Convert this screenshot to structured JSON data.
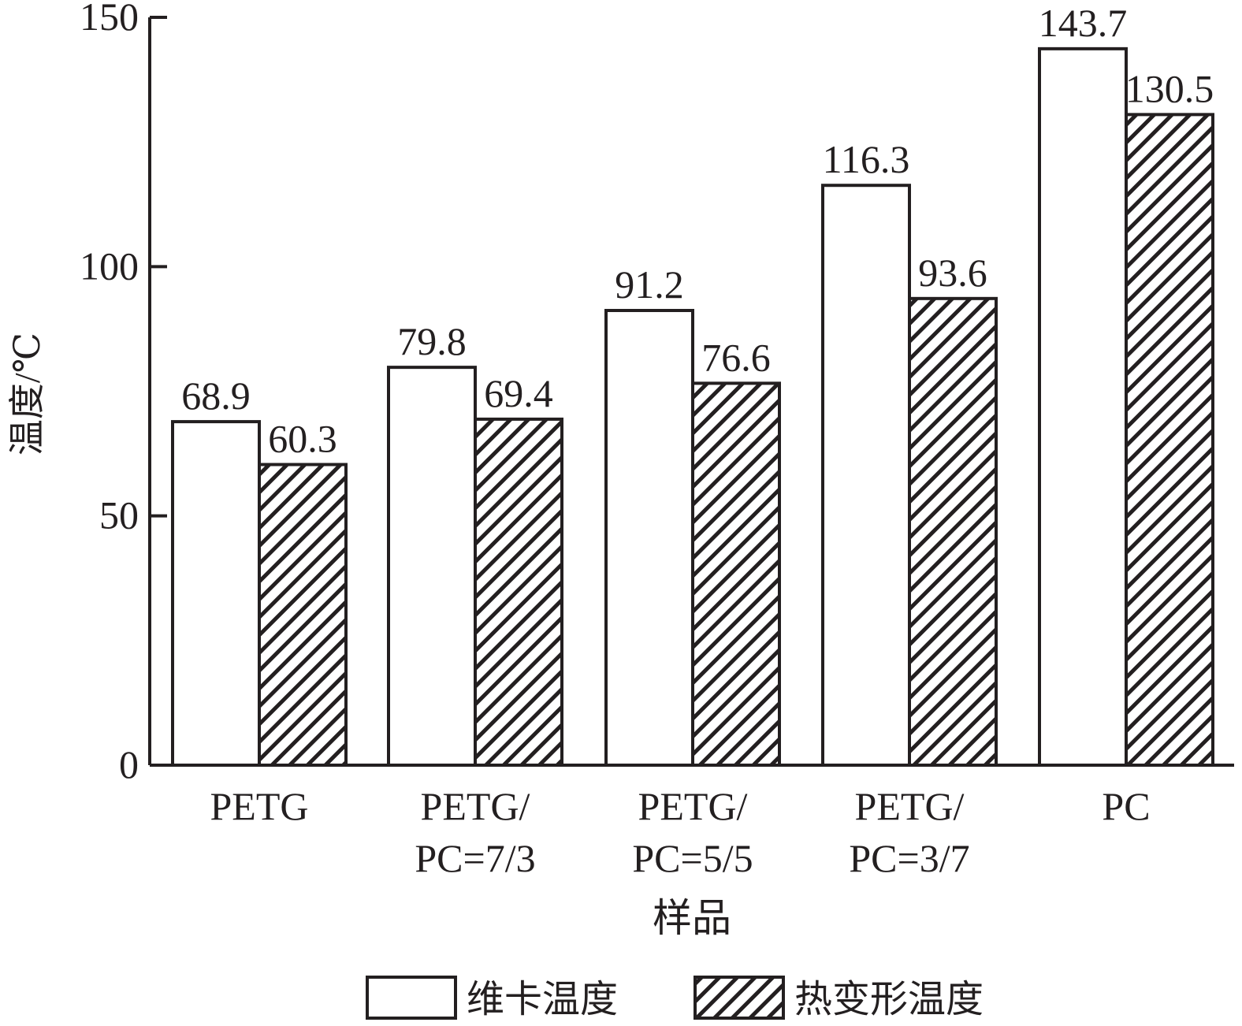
{
  "chart_data": {
    "type": "bar",
    "xlabel": "样品",
    "ylabel": "温度/℃",
    "ylim": [
      0,
      150
    ],
    "yticks": [
      0,
      50,
      100,
      150
    ],
    "categories": [
      [
        "PETG"
      ],
      [
        "PETG/",
        "PC=7/3"
      ],
      [
        "PETG/",
        "PC=5/5"
      ],
      [
        "PETG/",
        "PC=3/7"
      ],
      [
        "PC"
      ]
    ],
    "series": [
      {
        "name": "维卡温度",
        "pattern": "none",
        "values": [
          68.9,
          79.8,
          91.2,
          116.3,
          143.7
        ]
      },
      {
        "name": "热变形温度",
        "pattern": "hatch",
        "values": [
          60.3,
          69.4,
          76.6,
          93.6,
          130.5
        ]
      }
    ],
    "value_labels": [
      [
        "68.9",
        "79.8",
        "91.2",
        "116.3",
        "143.7"
      ],
      [
        "60.3",
        "69.4",
        "76.6",
        "93.6",
        "130.5"
      ]
    ],
    "legend_position": "bottom",
    "colors": {
      "ink": "#231f20",
      "fill": "#ffffff"
    }
  }
}
